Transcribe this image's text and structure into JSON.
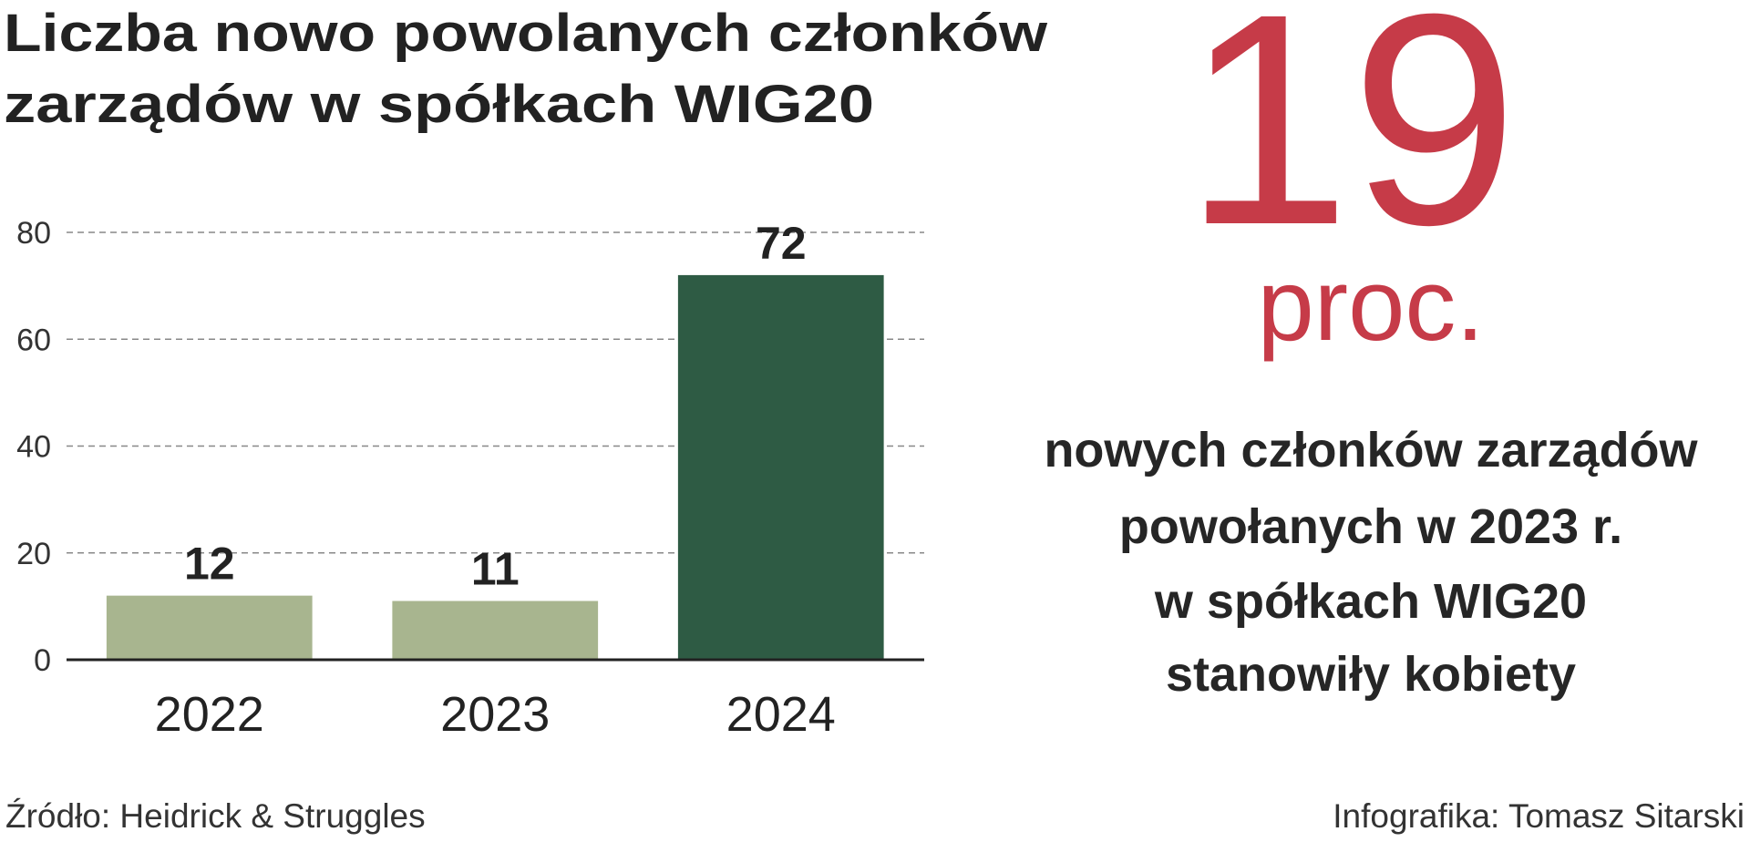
{
  "chart_data": {
    "type": "bar",
    "title": [
      "Liczba nowo powolanych członków",
      "zarządów w spółkach WIG20"
    ],
    "categories": [
      "2022",
      "2023",
      "2024"
    ],
    "values": [
      12,
      11,
      72
    ],
    "colors": [
      "#a8b58f",
      "#a8b58f",
      "#2e5b44"
    ],
    "ylim": [
      0,
      80
    ],
    "yticks": [
      0,
      20,
      40,
      60,
      80
    ],
    "grid": true
  },
  "callout": {
    "value": 19,
    "unit": "proc.",
    "color": "#c63b48",
    "text": [
      "nowych członków zarządów",
      "powołanych w 2023 r.",
      "w spółkach WIG20",
      "stanowiły kobiety"
    ]
  },
  "source": "Źródło: Heidrick & Struggles",
  "credit": "Infografika: Tomasz Sitarski"
}
